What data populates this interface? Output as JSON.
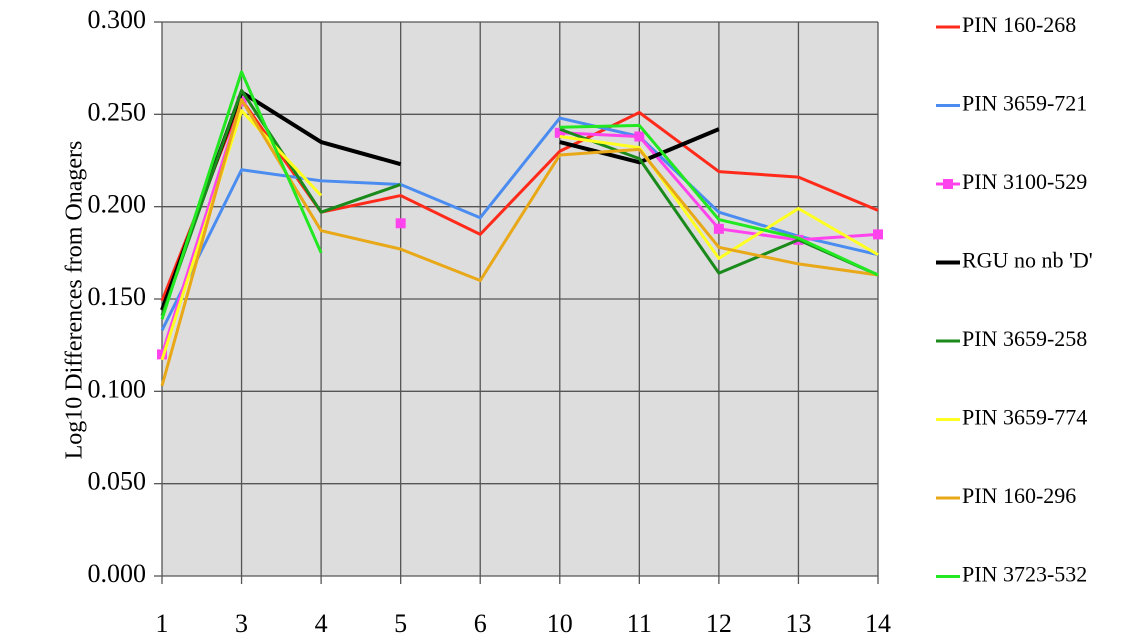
{
  "chart_data": {
    "type": "line",
    "y_label": "Log10 Differences from Onagers",
    "categories": [
      "1",
      "3",
      "4",
      "5",
      "6",
      "10",
      "11",
      "12",
      "13",
      "14"
    ],
    "ylim": [
      0,
      0.3
    ],
    "yticks": [
      {
        "value": 0,
        "label": "0.000"
      },
      {
        "value": 0.05,
        "label": "0.050"
      },
      {
        "value": 0.1,
        "label": "0.100"
      },
      {
        "value": 0.15,
        "label": "0.150"
      },
      {
        "value": 0.2,
        "label": "0.200"
      },
      {
        "value": 0.25,
        "label": "0.250"
      },
      {
        "value": 0.3,
        "label": "0.300"
      }
    ],
    "grid": true,
    "legend": "right",
    "series": [
      {
        "name": "PIN 160-268",
        "color": "#ff2a1a",
        "values": [
          0.149,
          0.258,
          0.197,
          0.206,
          0.185,
          0.23,
          0.251,
          0.219,
          0.216,
          0.198
        ]
      },
      {
        "name": "PIN 3659-721",
        "color": "#4a8cf0",
        "values": [
          0.133,
          0.22,
          0.214,
          0.212,
          0.194,
          0.248,
          0.238,
          0.197,
          0.184,
          0.174
        ]
      },
      {
        "name": "PIN 3100-529",
        "color": "#ff44ee",
        "marker": "square",
        "values": [
          0.12,
          0.257,
          null,
          0.191,
          null,
          0.24,
          0.238,
          0.188,
          0.182,
          0.185
        ]
      },
      {
        "name": "RGU no nb 'D'",
        "color": "#000000",
        "values": [
          0.144,
          0.262,
          0.235,
          0.223,
          null,
          0.235,
          0.224,
          0.242,
          null,
          null
        ]
      },
      {
        "name": "PIN 3659-258",
        "color": "#1a8a1a",
        "values": [
          0.141,
          0.263,
          0.197,
          0.212,
          null,
          0.242,
          0.226,
          0.164,
          0.182,
          0.163
        ]
      },
      {
        "name": "PIN 3659-774",
        "color": "#ffff22",
        "values": [
          0.117,
          0.252,
          0.206,
          null,
          null,
          0.238,
          0.232,
          0.172,
          0.199,
          0.174
        ]
      },
      {
        "name": "PIN 160-296",
        "color": "#e8a818",
        "values": [
          0.103,
          0.258,
          0.187,
          0.177,
          0.16,
          0.228,
          0.231,
          0.178,
          0.169,
          0.163
        ]
      },
      {
        "name": "PIN 3723-532",
        "color": "#22e822",
        "values": [
          0.139,
          0.273,
          0.175,
          null,
          null,
          0.243,
          0.244,
          0.193,
          0.183,
          0.163
        ]
      }
    ]
  }
}
